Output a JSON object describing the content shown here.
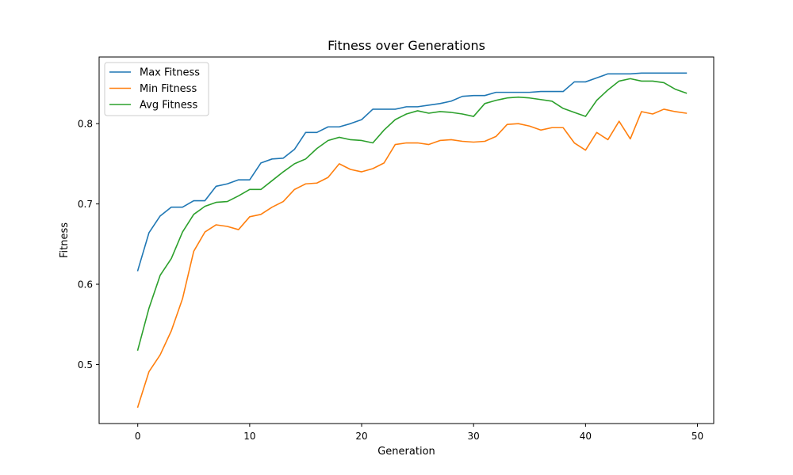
{
  "chart_data": {
    "type": "line",
    "title": "Fitness over Generations",
    "xlabel": "Generation",
    "ylabel": "Fitness",
    "xlim": [
      -3.45,
      51.45
    ],
    "ylim": [
      0.4265,
      0.883
    ],
    "xticks": [
      0,
      10,
      20,
      30,
      40,
      50
    ],
    "yticks": [
      0.5,
      0.6,
      0.7,
      0.8
    ],
    "xtick_labels": [
      "0",
      "10",
      "20",
      "30",
      "40",
      "50"
    ],
    "ytick_labels": [
      "0.5",
      "0.6",
      "0.7",
      "0.8"
    ],
    "grid": false,
    "legend_position": "top-left",
    "x": [
      0,
      1,
      2,
      3,
      4,
      5,
      6,
      7,
      8,
      9,
      10,
      11,
      12,
      13,
      14,
      15,
      16,
      17,
      18,
      19,
      20,
      21,
      22,
      23,
      24,
      25,
      26,
      27,
      28,
      29,
      30,
      31,
      32,
      33,
      34,
      35,
      36,
      37,
      38,
      39,
      40,
      41,
      42,
      43,
      44,
      45,
      46,
      47,
      48,
      49
    ],
    "series": [
      {
        "name": "Max Fitness",
        "color": "#1f77b4",
        "values": [
          0.617,
          0.664,
          0.685,
          0.696,
          0.696,
          0.704,
          0.704,
          0.722,
          0.725,
          0.73,
          0.73,
          0.751,
          0.756,
          0.757,
          0.768,
          0.789,
          0.789,
          0.796,
          0.796,
          0.8,
          0.805,
          0.818,
          0.818,
          0.818,
          0.821,
          0.821,
          0.823,
          0.825,
          0.828,
          0.834,
          0.835,
          0.835,
          0.839,
          0.839,
          0.839,
          0.839,
          0.84,
          0.84,
          0.84,
          0.852,
          0.852,
          0.857,
          0.862,
          0.862,
          0.862,
          0.863,
          0.863,
          0.863,
          0.863,
          0.863
        ]
      },
      {
        "name": "Min Fitness",
        "color": "#ff7f0e",
        "values": [
          0.447,
          0.491,
          0.512,
          0.542,
          0.582,
          0.641,
          0.665,
          0.674,
          0.672,
          0.668,
          0.684,
          0.687,
          0.696,
          0.703,
          0.718,
          0.725,
          0.726,
          0.733,
          0.75,
          0.743,
          0.74,
          0.744,
          0.751,
          0.774,
          0.776,
          0.776,
          0.774,
          0.779,
          0.78,
          0.778,
          0.777,
          0.778,
          0.784,
          0.799,
          0.8,
          0.797,
          0.792,
          0.795,
          0.795,
          0.776,
          0.767,
          0.789,
          0.78,
          0.803,
          0.781,
          0.815,
          0.812,
          0.818,
          0.815,
          0.813
        ]
      },
      {
        "name": "Avg Fitness",
        "color": "#2ca02c",
        "values": [
          0.518,
          0.57,
          0.611,
          0.632,
          0.665,
          0.687,
          0.697,
          0.702,
          0.703,
          0.71,
          0.718,
          0.718,
          0.729,
          0.74,
          0.75,
          0.756,
          0.769,
          0.779,
          0.783,
          0.78,
          0.779,
          0.776,
          0.792,
          0.805,
          0.812,
          0.816,
          0.813,
          0.815,
          0.814,
          0.812,
          0.809,
          0.825,
          0.829,
          0.832,
          0.833,
          0.832,
          0.83,
          0.828,
          0.819,
          0.814,
          0.809,
          0.829,
          0.842,
          0.853,
          0.856,
          0.853,
          0.853,
          0.851,
          0.843,
          0.838
        ]
      }
    ]
  }
}
